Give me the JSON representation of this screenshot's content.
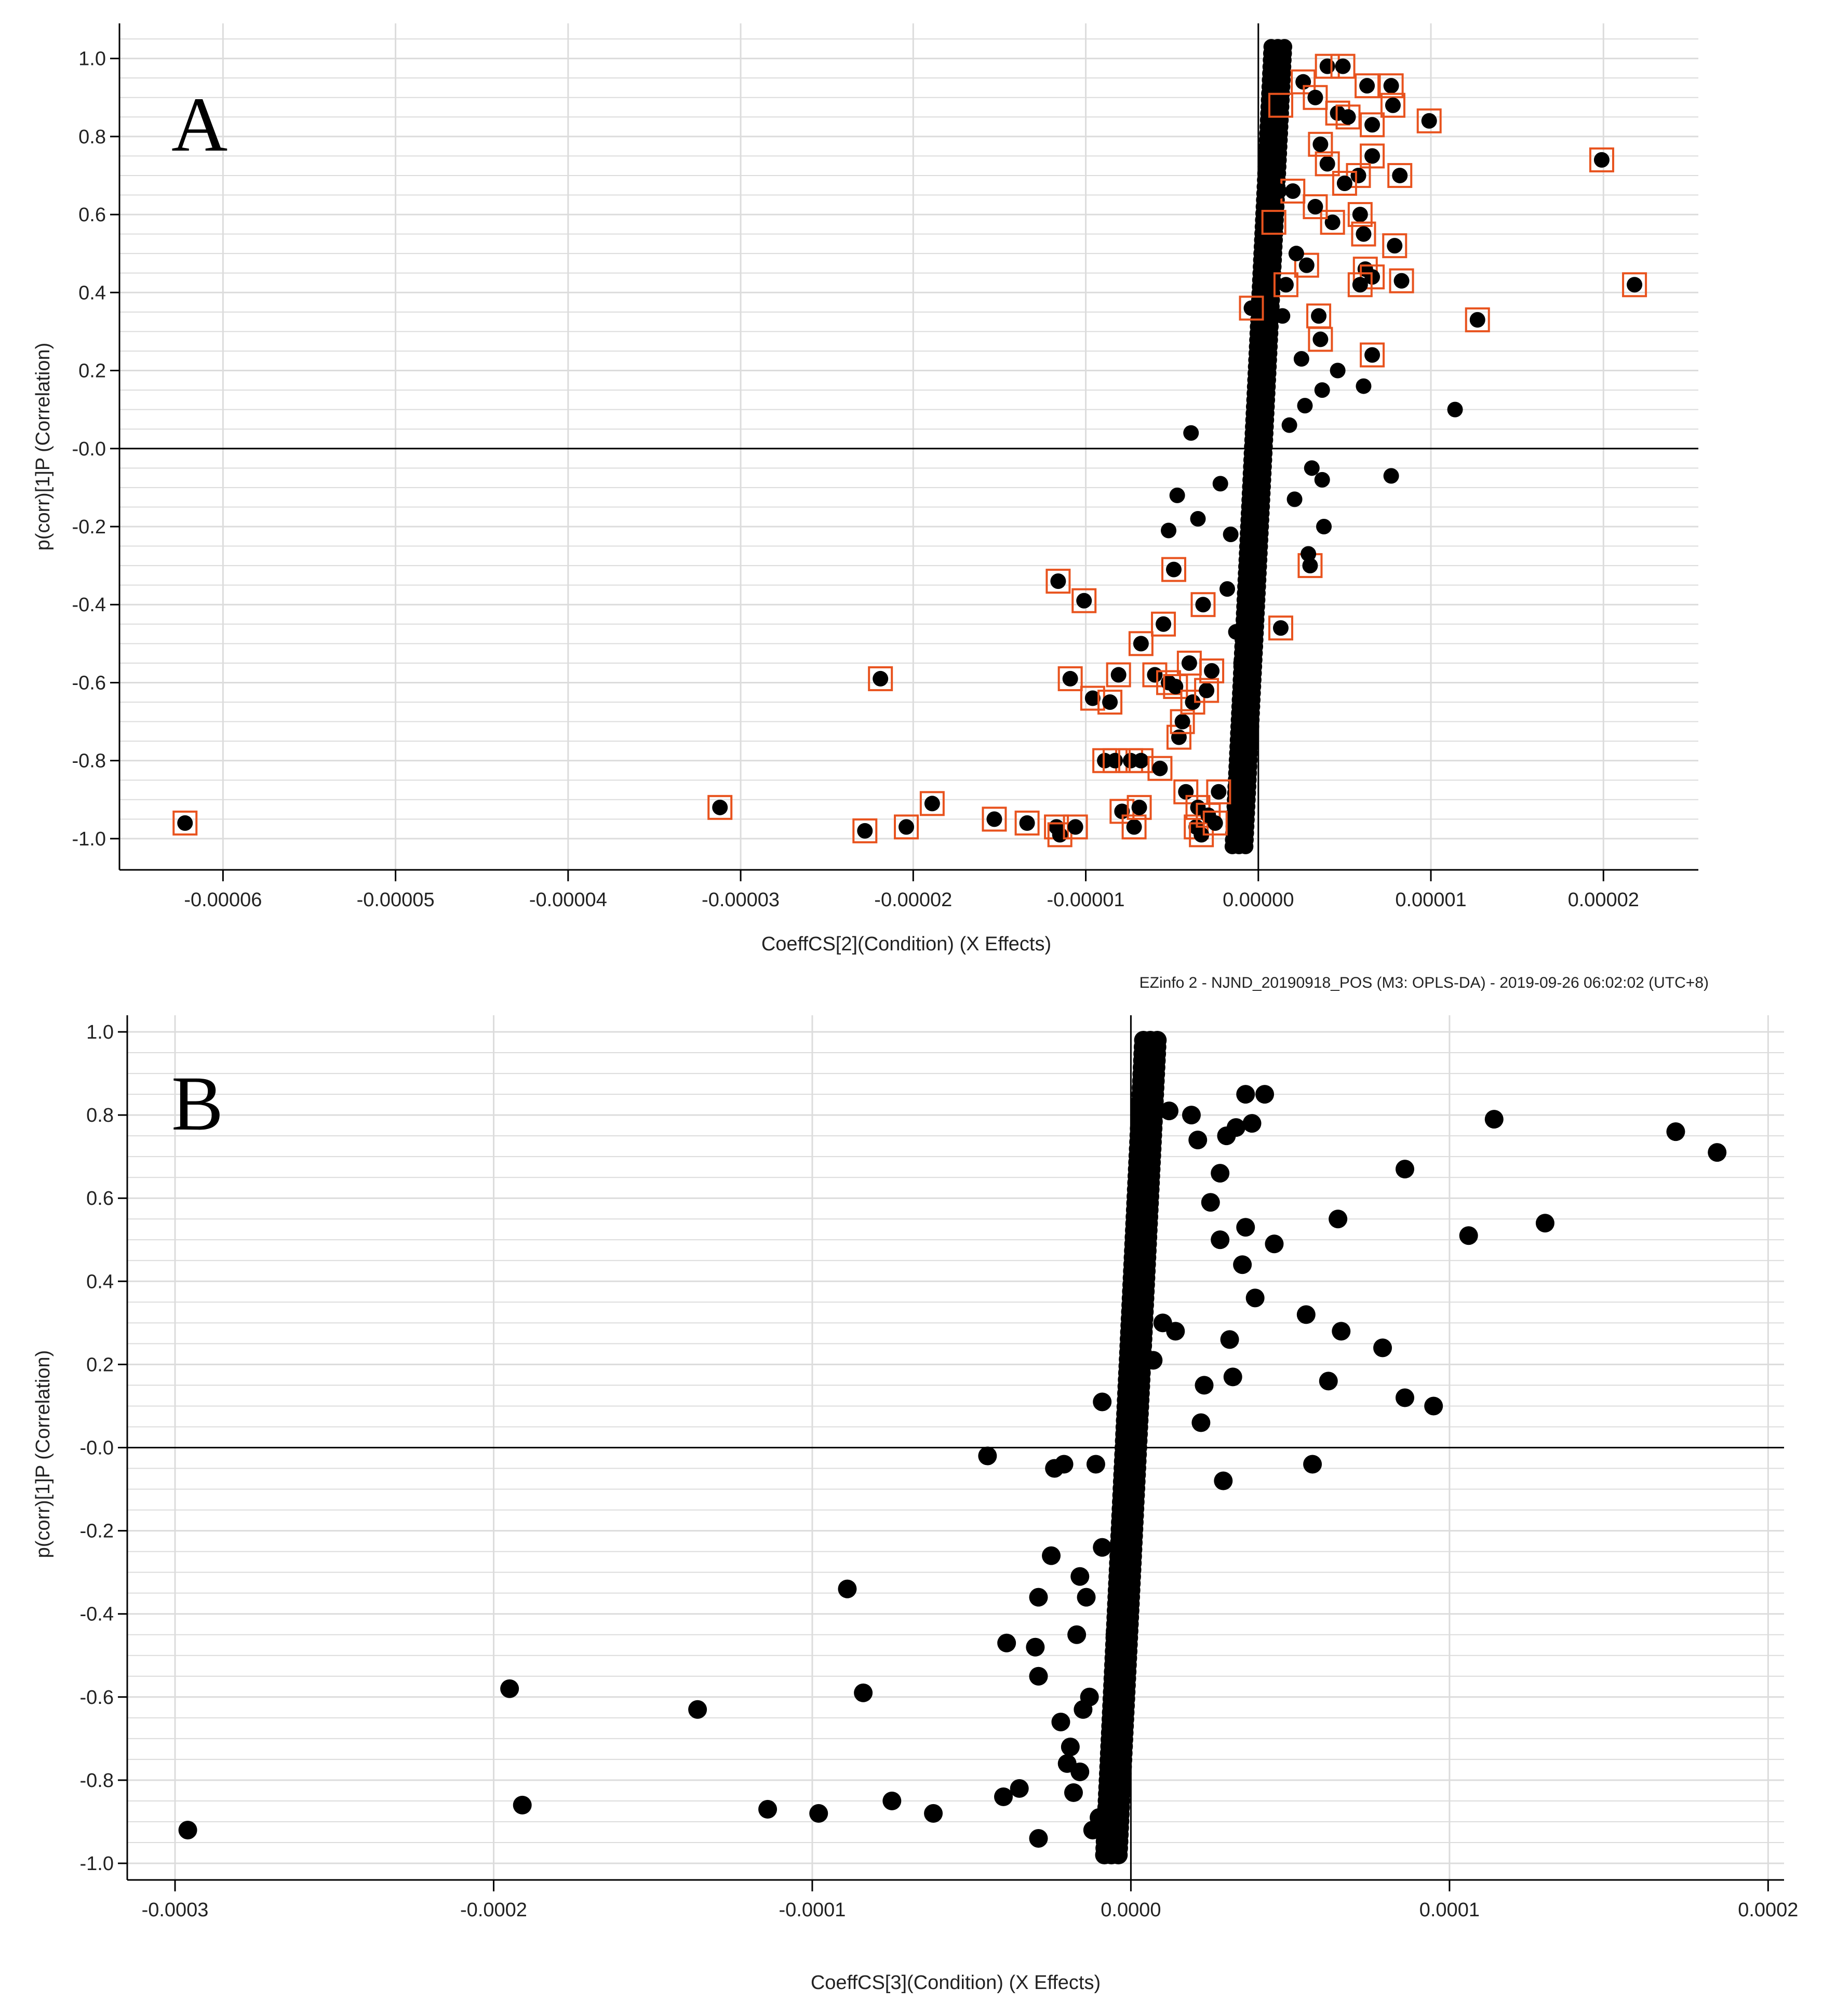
{
  "colors": {
    "point": "#000000",
    "highlight": "#e8531e",
    "grid": "#dcdcdc",
    "axis": "#000000"
  },
  "chart_data": [
    {
      "type": "scatter",
      "panel_label": "A",
      "xlabel": "CoeffCS[2](Condition) (X Effects)",
      "ylabel": "p(corr)[1]P (Correlation)",
      "xlim": [
        -6.6e-05,
        2.55e-05
      ],
      "ylim": [
        -1.08,
        1.09
      ],
      "x_ticks": [
        -6e-05,
        -5e-05,
        -4e-05,
        -3e-05,
        -2e-05,
        -1e-05,
        0.0,
        1e-05,
        2e-05
      ],
      "x_tick_labels": [
        "-0.00006",
        "-0.00005",
        "-0.00004",
        "-0.00003",
        "-0.00002",
        "-0.00001",
        "0.00000",
        "0.00001",
        "0.00002"
      ],
      "y_ticks": [
        1.0,
        0.8,
        0.6,
        0.4,
        0.2,
        0.0,
        -0.2,
        -0.4,
        -0.6,
        -0.8,
        -1.0
      ],
      "y_tick_labels": [
        "1.0",
        "0.8",
        "0.6",
        "0.4",
        "0.2",
        "-0.0",
        "-0.2",
        "-0.4",
        "-0.6",
        "-0.8",
        "-1.0"
      ],
      "grid": true,
      "footer": "EZinfo 2 - NJND_20190918_POS (M3: OPLS-DA) - 2019-09-26 06:02:02 (UTC+8)",
      "series": [
        {
          "role": "selected",
          "color": "#e8531e",
          "points": [
            [
              -6.22e-05,
              -0.96
            ],
            [
              -3.12e-05,
              -0.92
            ],
            [
              -2.28e-05,
              -0.98
            ],
            [
              -2.04e-05,
              -0.97
            ],
            [
              -1.89e-05,
              -0.91
            ],
            [
              -1.53e-05,
              -0.95
            ],
            [
              -1.34e-05,
              -0.96
            ],
            [
              -1.17e-05,
              -0.97
            ],
            [
              -1.15e-05,
              -0.99
            ],
            [
              -1.06e-05,
              -0.97
            ],
            [
              -2.19e-05,
              -0.59
            ],
            [
              -1.16e-05,
              -0.34
            ],
            [
              -1.01e-05,
              -0.39
            ],
            [
              -1.09e-05,
              -0.59
            ],
            [
              -9.6e-06,
              -0.64
            ],
            [
              -8.6e-06,
              -0.65
            ],
            [
              -8.1e-06,
              -0.58
            ],
            [
              -8.9e-06,
              -0.8
            ],
            [
              -8.3e-06,
              -0.8
            ],
            [
              -7.9e-06,
              -0.93
            ],
            [
              -7.4e-06,
              -0.8
            ],
            [
              -7.2e-06,
              -0.97
            ],
            [
              -6.9e-06,
              -0.92
            ],
            [
              -6.8e-06,
              -0.8
            ],
            [
              -6.8e-06,
              -0.5
            ],
            [
              -6e-06,
              -0.58
            ],
            [
              -5.7e-06,
              -0.82
            ],
            [
              -5.5e-06,
              -0.45
            ],
            [
              -5.2e-06,
              -0.6
            ],
            [
              -4.8e-06,
              -0.61
            ],
            [
              -4.9e-06,
              -0.31
            ],
            [
              -4.6e-06,
              -0.74
            ],
            [
              -4.4e-06,
              -0.7
            ],
            [
              -4.2e-06,
              -0.88
            ],
            [
              -4e-06,
              -0.55
            ],
            [
              -3.8e-06,
              -0.65
            ],
            [
              -3.6e-06,
              -0.97
            ],
            [
              -3.5e-06,
              -0.92
            ],
            [
              -3.3e-06,
              -0.99
            ],
            [
              -3.2e-06,
              -0.4
            ],
            [
              -3e-06,
              -0.62
            ],
            [
              -2.9e-06,
              -0.94
            ],
            [
              -2.7e-06,
              -0.57
            ],
            [
              -2.5e-06,
              -0.96
            ],
            [
              -2.3e-06,
              -0.88
            ],
            [
              4e-06,
              0.98
            ],
            [
              4.9e-06,
              0.98
            ],
            [
              6.3e-06,
              0.93
            ],
            [
              7.7e-06,
              0.93
            ],
            [
              7.8e-06,
              0.88
            ],
            [
              2.6e-06,
              0.94
            ],
            [
              3.3e-06,
              0.9
            ],
            [
              4.6e-06,
              0.86
            ],
            [
              5.2e-06,
              0.85
            ],
            [
              6.6e-06,
              0.83
            ],
            [
              9.9e-06,
              0.84
            ],
            [
              1.99e-05,
              0.74
            ],
            [
              2.18e-05,
              0.42
            ],
            [
              1.27e-05,
              0.33
            ],
            [
              8.2e-06,
              0.7
            ],
            [
              6.6e-06,
              0.75
            ],
            [
              5.8e-06,
              0.7
            ],
            [
              5e-06,
              0.68
            ],
            [
              4e-06,
              0.73
            ],
            [
              3.6e-06,
              0.78
            ],
            [
              5.9e-06,
              0.6
            ],
            [
              6.1e-06,
              0.55
            ],
            [
              4.3e-06,
              0.58
            ],
            [
              7.9e-06,
              0.52
            ],
            [
              6.2e-06,
              0.46
            ],
            [
              6.6e-06,
              0.44
            ],
            [
              8.3e-06,
              0.43
            ],
            [
              5.9e-06,
              0.42
            ],
            [
              2.8e-06,
              0.47
            ],
            [
              1.6e-06,
              0.42
            ],
            [
              3.5e-06,
              0.34
            ],
            [
              3.6e-06,
              0.28
            ],
            [
              6.6e-06,
              0.24
            ],
            [
              -4e-07,
              0.36
            ],
            [
              1.3e-06,
              0.88
            ],
            [
              2e-06,
              0.66
            ],
            [
              3.3e-06,
              0.62
            ],
            [
              9e-07,
              0.58
            ],
            [
              3e-06,
              -0.3
            ],
            [
              1.3e-06,
              -0.46
            ]
          ]
        },
        {
          "role": "other",
          "color": "#000000",
          "points": [
            [
              1.14e-05,
              0.1
            ],
            [
              7.7e-06,
              -0.07
            ],
            [
              6.1e-06,
              0.16
            ],
            [
              4.6e-06,
              0.2
            ],
            [
              3.7e-06,
              0.15
            ],
            [
              2.7e-06,
              0.11
            ],
            [
              1.8e-06,
              0.06
            ],
            [
              3.8e-06,
              -0.2
            ],
            [
              3.7e-06,
              -0.08
            ],
            [
              2.1e-06,
              -0.13
            ],
            [
              2.9e-06,
              -0.27
            ],
            [
              -3.9e-06,
              0.04
            ],
            [
              -4.7e-06,
              -0.12
            ],
            [
              -5.2e-06,
              -0.21
            ],
            [
              -3.5e-06,
              -0.18
            ],
            [
              -2.2e-06,
              -0.09
            ],
            [
              -1.6e-06,
              -0.22
            ],
            [
              -1.8e-06,
              -0.36
            ],
            [
              -1.3e-06,
              -0.47
            ],
            [
              -1e-06,
              -0.55
            ],
            [
              1.4e-06,
              0.34
            ],
            [
              2.2e-06,
              0.5
            ],
            [
              1.2e-06,
              0.66
            ],
            [
              3.1e-06,
              -0.05
            ],
            [
              2.5e-06,
              0.23
            ]
          ]
        }
      ]
    },
    {
      "type": "scatter",
      "panel_label": "B",
      "xlabel": "CoeffCS[3](Condition) (X Effects)",
      "ylabel": "p(corr)[1]P (Correlation)",
      "xlim": [
        -0.000315,
        0.000205
      ],
      "ylim": [
        -1.04,
        1.04
      ],
      "x_ticks": [
        -0.0003,
        -0.0002,
        -0.0001,
        0.0,
        0.0001,
        0.0002
      ],
      "x_tick_labels": [
        "-0.0003",
        "-0.0002",
        "-0.0001",
        "0.0000",
        "0.0001",
        "0.0002"
      ],
      "y_ticks": [
        1.0,
        0.8,
        0.6,
        0.4,
        0.2,
        0.0,
        -0.2,
        -0.4,
        -0.6,
        -0.8,
        -1.0
      ],
      "y_tick_labels": [
        "1.0",
        "0.8",
        "0.6",
        "0.4",
        "0.2",
        "-0.0",
        "-0.2",
        "-0.4",
        "-0.6",
        "-0.8",
        "-1.0"
      ],
      "grid": true,
      "series": [
        {
          "role": "other",
          "color": "#000000",
          "points": [
            [
              -0.000296,
              -0.92
            ],
            [
              -0.000195,
              -0.58
            ],
            [
              -0.000191,
              -0.86
            ],
            [
              -0.000136,
              -0.63
            ],
            [
              -0.000114,
              -0.87
            ],
            [
              -9.8e-05,
              -0.88
            ],
            [
              -8.9e-05,
              -0.34
            ],
            [
              -8.4e-05,
              -0.59
            ],
            [
              -7.5e-05,
              -0.85
            ],
            [
              -6.2e-05,
              -0.88
            ],
            [
              -4.5e-05,
              -0.02
            ],
            [
              -4e-05,
              -0.84
            ],
            [
              -3.9e-05,
              -0.47
            ],
            [
              -3.5e-05,
              -0.82
            ],
            [
              -3e-05,
              -0.48
            ],
            [
              -2.9e-05,
              -0.36
            ],
            [
              -2.9e-05,
              -0.55
            ],
            [
              -2.9e-05,
              -0.94
            ],
            [
              -2.5e-05,
              -0.26
            ],
            [
              -2.4e-05,
              -0.05
            ],
            [
              -2.2e-05,
              -0.66
            ],
            [
              -2.1e-05,
              -0.04
            ],
            [
              -2e-05,
              -0.76
            ],
            [
              -1.9e-05,
              -0.72
            ],
            [
              -1.8e-05,
              -0.83
            ],
            [
              -1.7e-05,
              -0.45
            ],
            [
              -1.6e-05,
              -0.78
            ],
            [
              -1.6e-05,
              -0.31
            ],
            [
              -1.5e-05,
              -0.63
            ],
            [
              -1.4e-05,
              -0.36
            ],
            [
              -1.3e-05,
              -0.6
            ],
            [
              -1.2e-05,
              -0.92
            ],
            [
              -1.1e-05,
              -0.04
            ],
            [
              -1e-05,
              -0.89
            ],
            [
              -9e-06,
              -0.24
            ],
            [
              -9e-06,
              0.11
            ],
            [
              -8e-06,
              -0.93
            ],
            [
              -6e-06,
              -0.78
            ],
            [
              -5e-06,
              -0.45
            ],
            [
              -4e-06,
              -0.6
            ],
            [
              4e-06,
              0.89
            ],
            [
              7e-06,
              0.8
            ],
            [
              1.2e-05,
              0.81
            ],
            [
              1.9e-05,
              0.8
            ],
            [
              2.1e-05,
              0.74
            ],
            [
              2.5e-05,
              0.59
            ],
            [
              2.8e-05,
              0.66
            ],
            [
              2.8e-05,
              0.5
            ],
            [
              3e-05,
              0.75
            ],
            [
              3.3e-05,
              0.77
            ],
            [
              3.6e-05,
              0.85
            ],
            [
              3.8e-05,
              0.78
            ],
            [
              4.2e-05,
              0.85
            ],
            [
              3.6e-05,
              0.53
            ],
            [
              3.5e-05,
              0.44
            ],
            [
              4.5e-05,
              0.49
            ],
            [
              3.9e-05,
              0.36
            ],
            [
              3.1e-05,
              0.26
            ],
            [
              3.2e-05,
              0.17
            ],
            [
              2.9e-05,
              -0.08
            ],
            [
              2.3e-05,
              0.15
            ],
            [
              2.2e-05,
              0.06
            ],
            [
              1.4e-05,
              0.28
            ],
            [
              1e-05,
              0.3
            ],
            [
              7e-06,
              0.21
            ],
            [
              5.5e-05,
              0.32
            ],
            [
              6.5e-05,
              0.55
            ],
            [
              6.6e-05,
              0.28
            ],
            [
              6.2e-05,
              0.16
            ],
            [
              5.7e-05,
              -0.04
            ],
            [
              7.9e-05,
              0.24
            ],
            [
              8.6e-05,
              0.67
            ],
            [
              8.6e-05,
              0.12
            ],
            [
              9.5e-05,
              0.1
            ],
            [
              0.000106,
              0.51
            ],
            [
              0.000114,
              0.79
            ],
            [
              0.00013,
              0.54
            ],
            [
              0.000171,
              0.76
            ],
            [
              0.000184,
              0.71
            ]
          ]
        }
      ]
    }
  ]
}
